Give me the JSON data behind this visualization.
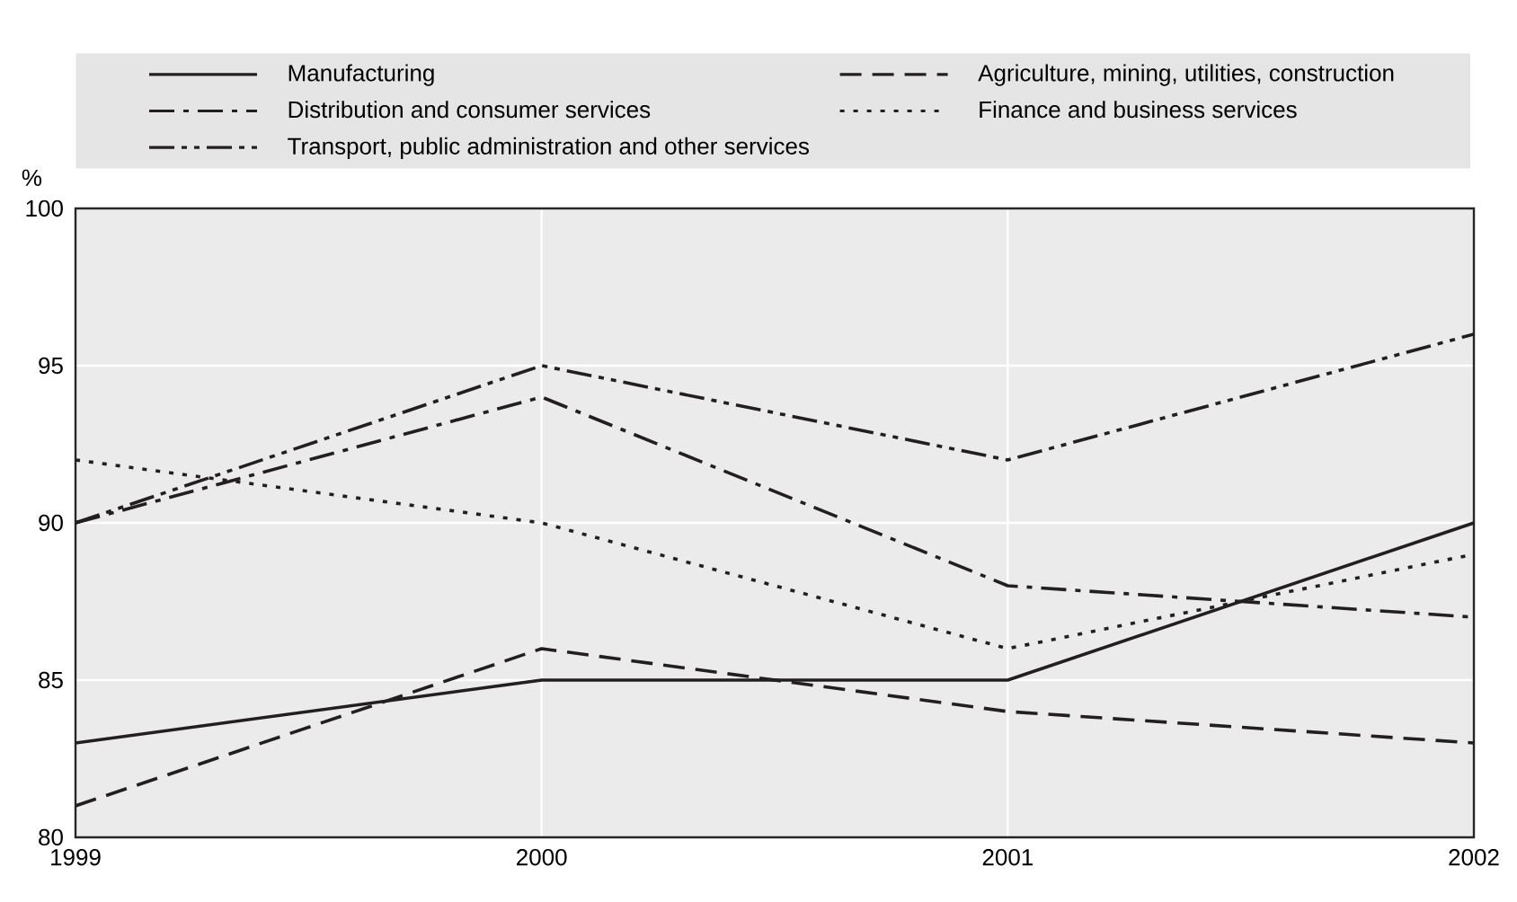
{
  "chart_data": {
    "type": "line",
    "ylabel": "%",
    "x": [
      1999,
      2000,
      2001,
      2002
    ],
    "xlim": [
      1999,
      2002
    ],
    "xticks": [
      1999,
      2000,
      2001,
      2002
    ],
    "ylim": [
      80,
      100
    ],
    "yticks": [
      80,
      85,
      90,
      95,
      100
    ],
    "grid": true,
    "legend": "top",
    "series": [
      {
        "name": "Manufacturing",
        "color": "#231f20",
        "line_style": "solid",
        "values": [
          83,
          85,
          85,
          90
        ]
      },
      {
        "name": "Agriculture, mining, utilities, construction",
        "color": "#231f20",
        "line_style": "dashed",
        "values": [
          81,
          86,
          84,
          83
        ]
      },
      {
        "name": "Distribution and consumer services",
        "color": "#231f20",
        "line_style": "dashdot",
        "values": [
          90,
          94,
          88,
          87
        ]
      },
      {
        "name": "Finance and business services",
        "color": "#231f20",
        "line_style": "dotted",
        "values": [
          92,
          90,
          86,
          89
        ]
      },
      {
        "name": "Transport, public administration and other services",
        "color": "#231f20",
        "line_style": "dashdotdot",
        "values": [
          90,
          95,
          92,
          96
        ]
      }
    ]
  }
}
